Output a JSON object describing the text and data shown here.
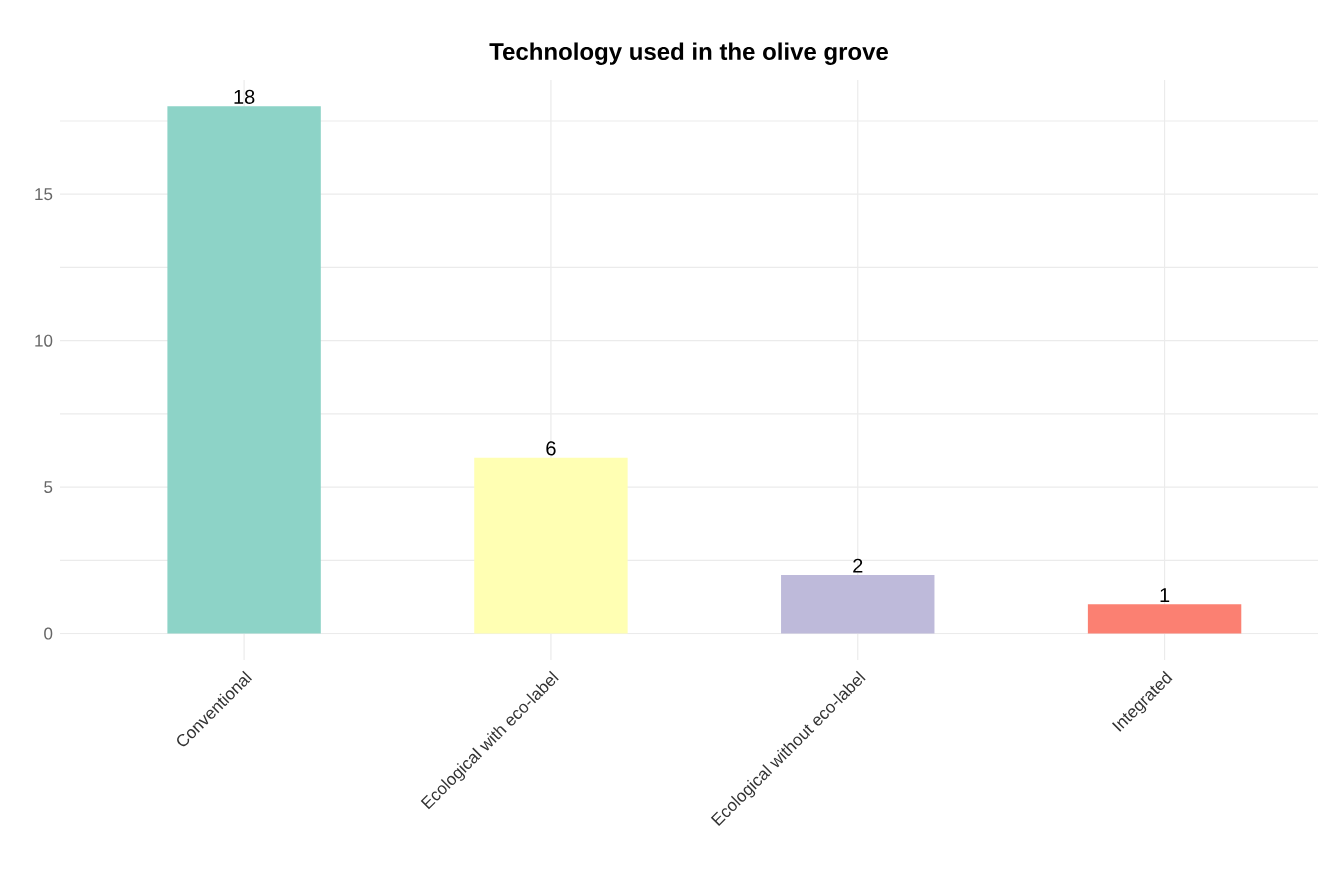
{
  "chart_data": {
    "type": "bar",
    "title": "Technology used in the olive grove",
    "categories": [
      "Conventional",
      "Ecological with eco-label",
      "Ecological without eco-label",
      "Integrated"
    ],
    "values": [
      18,
      6,
      2,
      1
    ],
    "colors": [
      "#8dd3c7",
      "#ffffb3",
      "#bebada",
      "#fb8072"
    ],
    "ylim": [
      -0.9,
      18.9
    ],
    "yticks": [
      0,
      {
        "value": 2.5,
        "label": null
      },
      5,
      {
        "value": 7.5,
        "label": null
      },
      10,
      {
        "value": 12.5,
        "label": null
      },
      15,
      {
        "value": 17.5,
        "label": null
      }
    ],
    "grid": true,
    "data_labels": true
  }
}
